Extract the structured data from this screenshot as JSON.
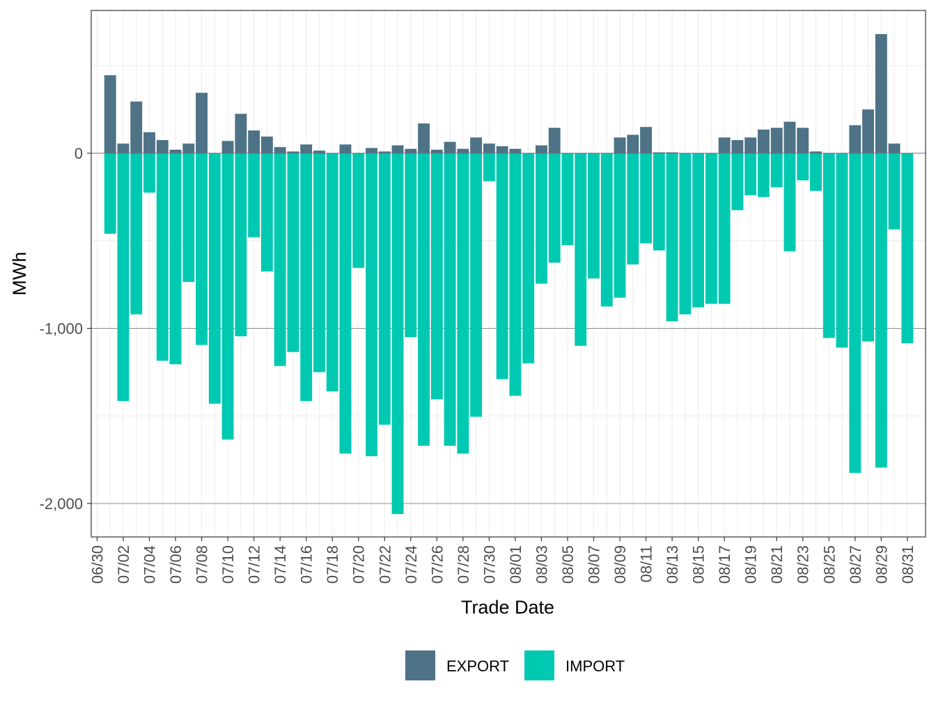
{
  "chart_data": {
    "type": "bar",
    "stacked": "diverging",
    "title": "",
    "xlabel": "Trade Date",
    "ylabel": "MWh",
    "ylim": [
      -2180,
      810
    ],
    "y_ticks": [
      0,
      -1000,
      -2000
    ],
    "y_tick_labels": [
      "0",
      "-1,000",
      "-2,000"
    ],
    "x_tick_labels": [
      "06/30",
      "07/02",
      "07/04",
      "07/06",
      "07/08",
      "07/10",
      "07/12",
      "07/14",
      "07/16",
      "07/18",
      "07/20",
      "07/22",
      "07/24",
      "07/26",
      "07/28",
      "07/30",
      "08/01",
      "08/03",
      "08/05",
      "08/07",
      "08/09",
      "08/11",
      "08/13",
      "08/15",
      "08/17",
      "08/19",
      "08/21",
      "08/23",
      "08/25",
      "08/27",
      "08/29",
      "08/31"
    ],
    "categories": [
      "06/30",
      "07/01",
      "07/02",
      "07/03",
      "07/04",
      "07/05",
      "07/06",
      "07/07",
      "07/08",
      "07/09",
      "07/10",
      "07/11",
      "07/12",
      "07/13",
      "07/14",
      "07/15",
      "07/16",
      "07/17",
      "07/18",
      "07/19",
      "07/20",
      "07/21",
      "07/22",
      "07/23",
      "07/24",
      "07/25",
      "07/26",
      "07/27",
      "07/28",
      "07/29",
      "07/30",
      "07/31",
      "08/01",
      "08/02",
      "08/03",
      "08/04",
      "08/05",
      "08/06",
      "08/07",
      "08/08",
      "08/09",
      "08/10",
      "08/11",
      "08/12",
      "08/13",
      "08/14",
      "08/15",
      "08/16",
      "08/17",
      "08/18",
      "08/19",
      "08/20",
      "08/21",
      "08/22",
      "08/23",
      "08/24",
      "08/25",
      "08/26",
      "08/27",
      "08/28",
      "08/29",
      "08/30",
      "08/31"
    ],
    "legend_position": "bottom",
    "series": [
      {
        "name": "EXPORT",
        "color": "#4e7286",
        "values": [
          0,
          445,
          55,
          295,
          120,
          75,
          20,
          55,
          345,
          0,
          70,
          225,
          130,
          95,
          35,
          10,
          50,
          15,
          0,
          50,
          0,
          30,
          10,
          45,
          25,
          170,
          20,
          65,
          25,
          90,
          55,
          40,
          25,
          0,
          45,
          145,
          0,
          0,
          0,
          0,
          90,
          105,
          150,
          5,
          5,
          0,
          0,
          0,
          90,
          75,
          90,
          135,
          145,
          180,
          145,
          10,
          0,
          0,
          160,
          250,
          680,
          55,
          0
        ]
      },
      {
        "name": "IMPORT",
        "color": "#00c9b1",
        "values": [
          0,
          -460,
          -1415,
          -920,
          -225,
          -1185,
          -1205,
          -735,
          -1095,
          -1430,
          -1635,
          -1045,
          -480,
          -675,
          -1215,
          -1135,
          -1415,
          -1250,
          -1360,
          -1715,
          -655,
          -1730,
          -1550,
          -2060,
          -1050,
          -1670,
          -1405,
          -1670,
          -1715,
          -1505,
          -160,
          -1290,
          -1385,
          -1200,
          -745,
          -625,
          -525,
          -1100,
          -715,
          -875,
          -825,
          -635,
          -515,
          -555,
          -960,
          -920,
          -880,
          -860,
          -860,
          -325,
          -240,
          -250,
          -195,
          -560,
          -155,
          -215,
          -1055,
          -1110,
          -1825,
          -1075,
          -1795,
          -435,
          -1085
        ]
      }
    ]
  }
}
